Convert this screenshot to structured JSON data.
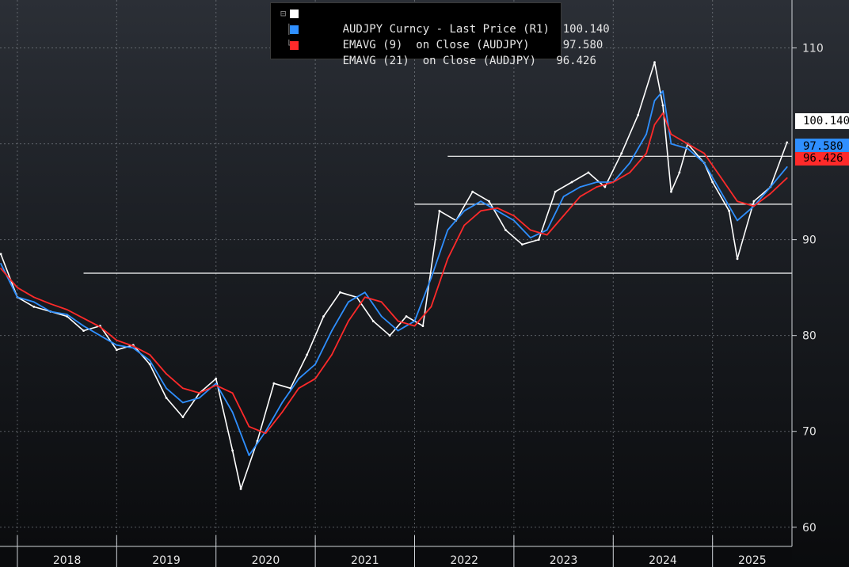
{
  "chart_data": {
    "type": "line",
    "title": "",
    "xlabel": "",
    "ylabel": "",
    "ylim": [
      58,
      115
    ],
    "xlim": [
      "2017-11",
      "2025-10"
    ],
    "grid": true,
    "legend_position": "top-center",
    "y_axis_side": "right",
    "y_ticks": [
      60,
      70,
      80,
      90,
      110
    ],
    "y_tick_labels": [
      "60",
      "70",
      "80",
      "90",
      "110"
    ],
    "x_tick_labels": [
      "2018",
      "2019",
      "2020",
      "2021",
      "2022",
      "2023",
      "2024",
      "2025"
    ],
    "legend": [
      {
        "label": "AUDJPY Curncy - Last Price (R1)",
        "value": "100.140",
        "color": "#ffffff"
      },
      {
        "label": "EMAVG (9)  on Close (AUDJPY)",
        "value": "97.580",
        "color": "#2f8fff"
      },
      {
        "label": "EMAVG (21)  on Close (AUDJPY)",
        "value": "96.426",
        "color": "#ff2a2a"
      }
    ],
    "price_tags": [
      {
        "value": "100.140",
        "bg": "#ffffff",
        "fg": "#000000"
      },
      {
        "value": "97.580",
        "bg": "#2f8fff",
        "fg": "#000000"
      },
      {
        "value": "96.426",
        "bg": "#ff2a2a",
        "fg": "#000000"
      }
    ],
    "horizontal_lines": [
      {
        "y": 86.5,
        "from": "2018-09",
        "to": "2025-10"
      },
      {
        "y": 93.7,
        "from": "2022-01",
        "to": "2025-10"
      },
      {
        "y": 98.7,
        "from": "2022-05",
        "to": "2025-10"
      }
    ],
    "series": [
      {
        "name": "AUDJPY Curncy - Last Price (R1)",
        "color": "#ffffff",
        "x": [
          "2017-11",
          "2018-01",
          "2018-03",
          "2018-05",
          "2018-07",
          "2018-09",
          "2018-11",
          "2019-01",
          "2019-03",
          "2019-05",
          "2019-07",
          "2019-09",
          "2019-11",
          "2020-01",
          "2020-03",
          "2020-04",
          "2020-06",
          "2020-08",
          "2020-10",
          "2020-12",
          "2021-02",
          "2021-04",
          "2021-06",
          "2021-08",
          "2021-10",
          "2021-12",
          "2022-02",
          "2022-04",
          "2022-06",
          "2022-08",
          "2022-10",
          "2022-12",
          "2023-02",
          "2023-04",
          "2023-06",
          "2023-08",
          "2023-10",
          "2023-12",
          "2024-02",
          "2024-04",
          "2024-06",
          "2024-07",
          "2024-08",
          "2024-09",
          "2024-10",
          "2024-12",
          "2025-01",
          "2025-03",
          "2025-04",
          "2025-06",
          "2025-08",
          "2025-10"
        ],
        "values": [
          88.5,
          84,
          83,
          82.5,
          82,
          80.5,
          81,
          78.5,
          79,
          77,
          73.5,
          71.5,
          74,
          75.5,
          68,
          64,
          69,
          75,
          74.5,
          78,
          82,
          84.5,
          84,
          81.5,
          80,
          82,
          81,
          93,
          92,
          95,
          94,
          91,
          89.5,
          90,
          95,
          96,
          97,
          95.5,
          99,
          103,
          108.5,
          104,
          95,
          97,
          100,
          98,
          96,
          93,
          88,
          94,
          95.5,
          100.14
        ]
      },
      {
        "name": "EMAVG (9)  on Close (AUDJPY)",
        "color": "#2f8fff",
        "x": [
          "2017-11",
          "2018-01",
          "2018-03",
          "2018-05",
          "2018-07",
          "2018-09",
          "2018-11",
          "2019-01",
          "2019-03",
          "2019-05",
          "2019-07",
          "2019-09",
          "2019-11",
          "2020-01",
          "2020-03",
          "2020-05",
          "2020-07",
          "2020-09",
          "2020-11",
          "2021-01",
          "2021-03",
          "2021-05",
          "2021-07",
          "2021-09",
          "2021-11",
          "2022-01",
          "2022-03",
          "2022-05",
          "2022-07",
          "2022-09",
          "2022-11",
          "2023-01",
          "2023-03",
          "2023-05",
          "2023-07",
          "2023-09",
          "2023-11",
          "2024-01",
          "2024-03",
          "2024-05",
          "2024-06",
          "2024-07",
          "2024-08",
          "2024-10",
          "2024-12",
          "2025-02",
          "2025-04",
          "2025-06",
          "2025-08",
          "2025-10"
        ],
        "values": [
          87.5,
          84,
          83.5,
          82.5,
          82.2,
          81,
          80,
          79,
          78.7,
          77.4,
          74.5,
          73,
          73.5,
          75,
          72,
          67.5,
          70,
          73,
          75.5,
          77,
          80.5,
          83.5,
          84.5,
          82,
          80.5,
          81.5,
          86,
          91,
          93,
          94,
          93,
          92,
          90.2,
          91,
          94.5,
          95.5,
          96,
          96,
          98,
          101,
          104.5,
          105.5,
          100,
          99.5,
          98,
          95,
          92,
          93.5,
          95.5,
          97.58
        ]
      },
      {
        "name": "EMAVG (21)  on Close (AUDJPY)",
        "color": "#ff2a2a",
        "x": [
          "2017-11",
          "2018-01",
          "2018-03",
          "2018-05",
          "2018-07",
          "2018-09",
          "2018-11",
          "2019-01",
          "2019-03",
          "2019-05",
          "2019-07",
          "2019-09",
          "2019-11",
          "2020-01",
          "2020-03",
          "2020-05",
          "2020-07",
          "2020-09",
          "2020-11",
          "2021-01",
          "2021-03",
          "2021-05",
          "2021-07",
          "2021-09",
          "2021-11",
          "2022-01",
          "2022-03",
          "2022-05",
          "2022-07",
          "2022-09",
          "2022-11",
          "2023-01",
          "2023-03",
          "2023-05",
          "2023-07",
          "2023-09",
          "2023-11",
          "2024-01",
          "2024-03",
          "2024-05",
          "2024-06",
          "2024-07",
          "2024-08",
          "2024-10",
          "2024-12",
          "2025-02",
          "2025-04",
          "2025-06",
          "2025-08",
          "2025-10"
        ],
        "values": [
          87,
          85,
          84,
          83.3,
          82.7,
          81.8,
          80.9,
          79.5,
          78.9,
          78,
          76,
          74.5,
          74,
          74.8,
          74,
          70.5,
          69.8,
          72,
          74.5,
          75.5,
          78,
          81.5,
          84,
          83.5,
          81.5,
          81,
          83,
          88,
          91.5,
          93,
          93.3,
          92.5,
          91,
          90.5,
          92.5,
          94.5,
          95.5,
          96,
          97,
          99,
          102,
          103.2,
          101,
          100,
          99,
          96.5,
          94,
          93.5,
          94.8,
          96.426
        ]
      }
    ]
  }
}
